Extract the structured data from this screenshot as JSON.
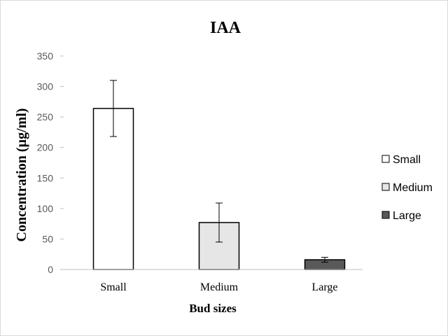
{
  "chart_data": {
    "type": "bar",
    "title": "IAA",
    "xlabel": "Bud sizes",
    "ylabel": "Concentration (µg/ml)",
    "categories": [
      "Small",
      "Medium",
      "Large"
    ],
    "values": [
      264,
      77,
      16
    ],
    "error": [
      46,
      32,
      4
    ],
    "colors": [
      "#ffffff",
      "#e6e6e6",
      "#595959"
    ],
    "ylim": [
      0,
      350
    ],
    "yticks": [
      0,
      50,
      100,
      150,
      200,
      250,
      300,
      350
    ],
    "grid": false,
    "legend": {
      "placement": "right",
      "entries": [
        "Small",
        "Medium",
        "Large"
      ]
    }
  }
}
